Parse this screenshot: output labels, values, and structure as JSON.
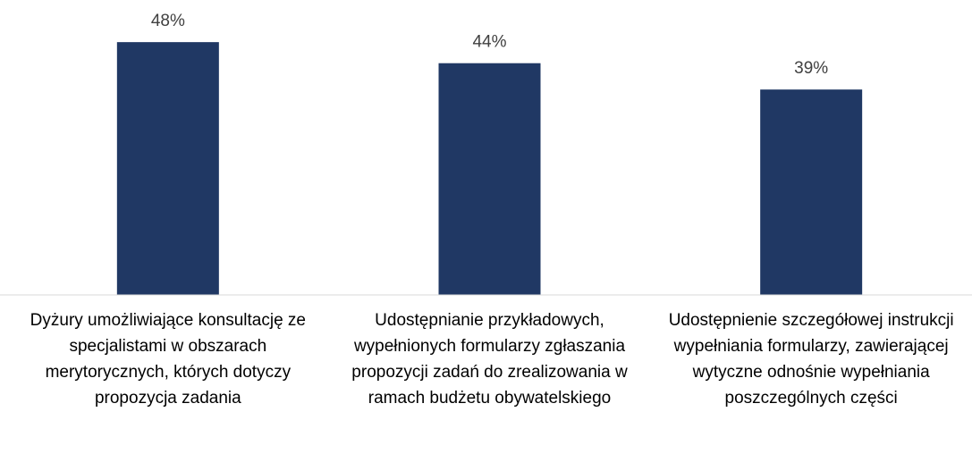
{
  "chart_data": {
    "type": "bar",
    "categories": [
      "Dyżury umożliwiające konsultację ze specjalistami w obszarach merytorycznych, których dotyczy propozycja zadania",
      "Udostępnianie przykładowych, wypełnionych formularzy zgłaszania propozycji zadań do zrealizowania w ramach budżetu obywatelskiego",
      "Udostępnienie szczegółowej instrukcji wypełniania formularzy, zawierającej wytyczne odnośnie wypełniania poszczególnych części"
    ],
    "values": [
      48,
      44,
      39
    ],
    "value_labels": [
      "48%",
      "44%",
      "39%"
    ],
    "color": "#203864",
    "ylim": [
      0,
      56
    ]
  }
}
